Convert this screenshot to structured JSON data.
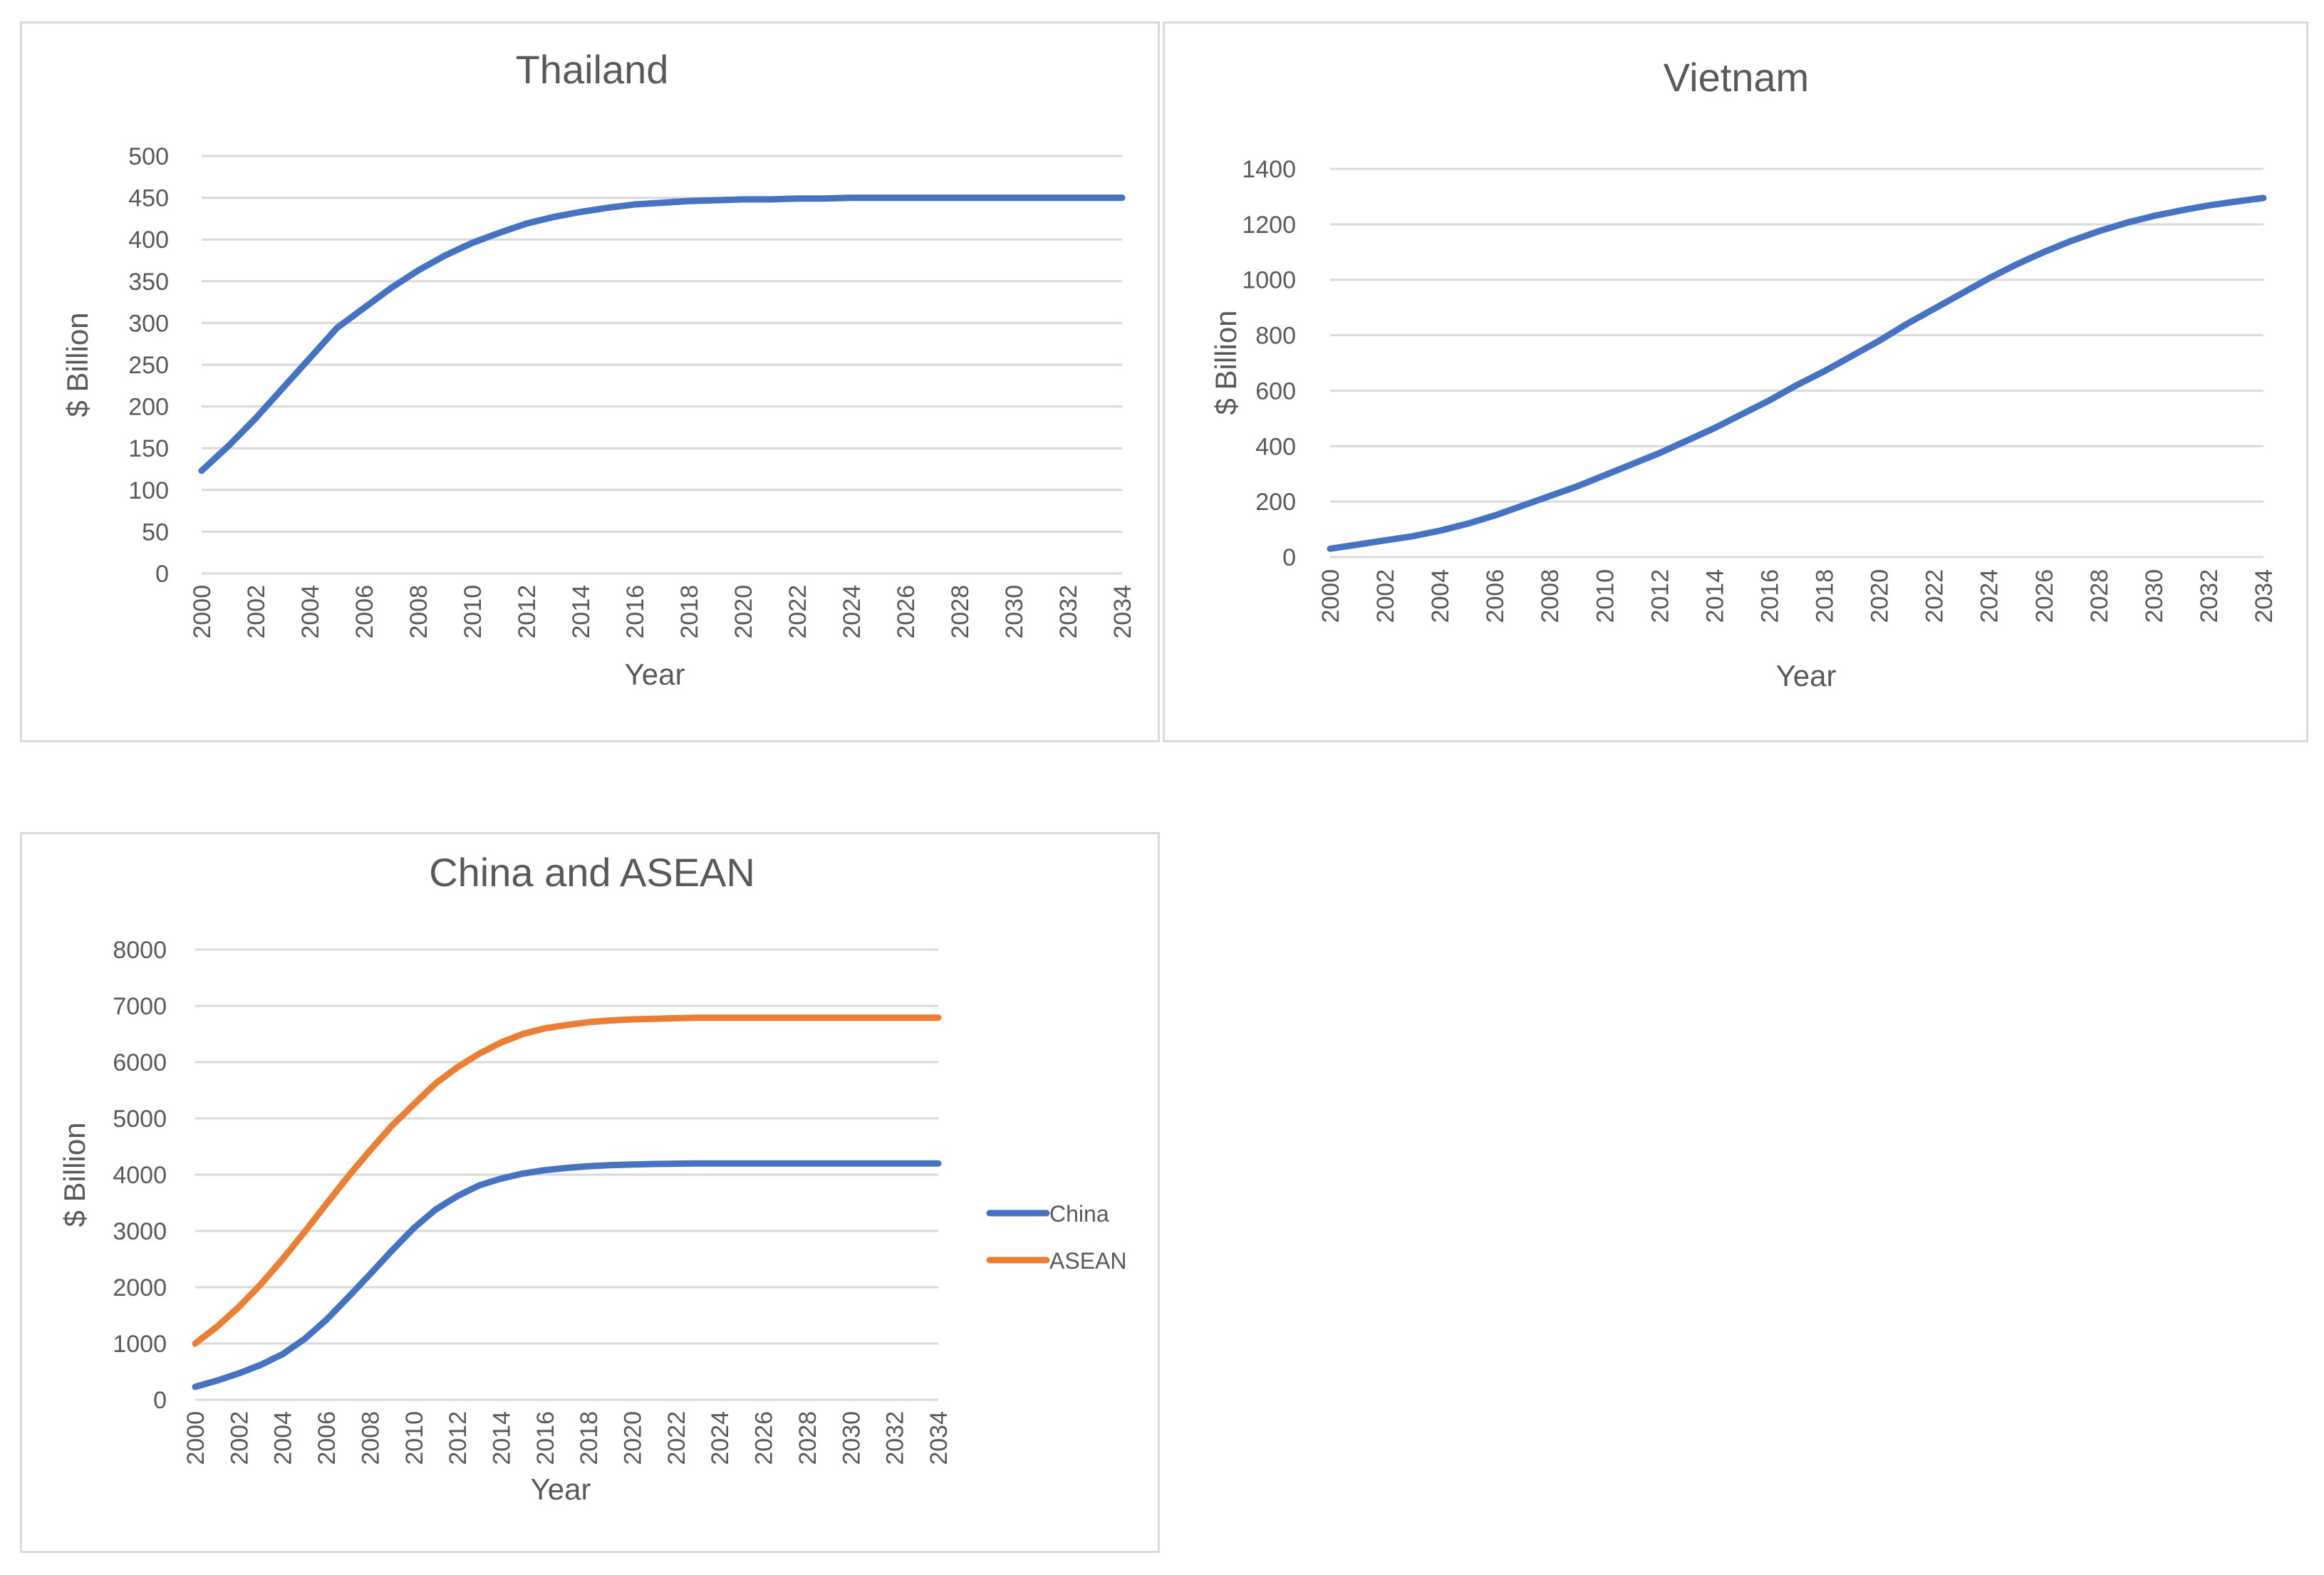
{
  "chart_data": [
    {
      "id": "thailand",
      "type": "line",
      "title": "Thailand",
      "xlabel": "Year",
      "ylabel": "$ Billion",
      "xlim": [
        2000,
        2034
      ],
      "ylim": [
        0,
        500
      ],
      "y_ticks": [
        0,
        50,
        100,
        150,
        200,
        250,
        300,
        350,
        400,
        450,
        500
      ],
      "x_ticks": [
        2000,
        2002,
        2004,
        2006,
        2008,
        2010,
        2012,
        2014,
        2016,
        2018,
        2020,
        2022,
        2024,
        2026,
        2028,
        2030,
        2032,
        2034
      ],
      "grid": true,
      "legend": "none",
      "series": [
        {
          "color": "#4472c4",
          "x": [
            2000,
            2001,
            2002,
            2003,
            2004,
            2005,
            2006,
            2007,
            2008,
            2009,
            2010,
            2011,
            2012,
            2013,
            2014,
            2015,
            2016,
            2017,
            2018,
            2019,
            2020,
            2021,
            2022,
            2023,
            2024,
            2025,
            2026,
            2027,
            2028,
            2029,
            2030,
            2031,
            2032,
            2033,
            2034
          ],
          "values": [
            123,
            153,
            186,
            222,
            258,
            294,
            318,
            342,
            363,
            381,
            396,
            408,
            419,
            427,
            433,
            438,
            442,
            444,
            446,
            447,
            448,
            448,
            449,
            449,
            450,
            450,
            450,
            450,
            450,
            450,
            450,
            450,
            450,
            450,
            450
          ]
        }
      ]
    },
    {
      "id": "vietnam",
      "type": "line",
      "title": "Vietnam",
      "xlabel": "Year",
      "ylabel": "$ Billion",
      "xlim": [
        2000,
        2034
      ],
      "ylim": [
        0,
        1400
      ],
      "y_ticks": [
        0,
        200,
        400,
        600,
        800,
        1000,
        1200,
        1400
      ],
      "x_ticks": [
        2000,
        2002,
        2004,
        2006,
        2008,
        2010,
        2012,
        2014,
        2016,
        2018,
        2020,
        2022,
        2024,
        2026,
        2028,
        2030,
        2032,
        2034
      ],
      "grid": true,
      "legend": "none",
      "series": [
        {
          "color": "#4472c4",
          "x": [
            2000,
            2001,
            2002,
            2003,
            2004,
            2005,
            2006,
            2007,
            2008,
            2009,
            2010,
            2011,
            2012,
            2013,
            2014,
            2015,
            2016,
            2017,
            2018,
            2019,
            2020,
            2021,
            2022,
            2023,
            2024,
            2025,
            2026,
            2027,
            2028,
            2029,
            2030,
            2031,
            2032,
            2033,
            2034
          ],
          "values": [
            30,
            45,
            60,
            75,
            95,
            120,
            150,
            185,
            220,
            255,
            295,
            335,
            375,
            420,
            465,
            515,
            565,
            620,
            670,
            725,
            780,
            840,
            895,
            950,
            1005,
            1055,
            1100,
            1140,
            1175,
            1205,
            1230,
            1250,
            1268,
            1282,
            1295
          ]
        }
      ]
    },
    {
      "id": "china-asean",
      "type": "line",
      "title": "China and ASEAN",
      "xlabel": "Year",
      "ylabel": "$ Billion",
      "xlim": [
        2000,
        2034
      ],
      "ylim": [
        0,
        8000
      ],
      "y_ticks": [
        0,
        1000,
        2000,
        3000,
        4000,
        5000,
        6000,
        7000,
        8000
      ],
      "x_ticks": [
        2000,
        2002,
        2004,
        2006,
        2008,
        2010,
        2012,
        2014,
        2016,
        2018,
        2020,
        2022,
        2024,
        2026,
        2028,
        2030,
        2032,
        2034
      ],
      "grid": true,
      "legend": "right",
      "series": [
        {
          "name": "China",
          "color": "#4472c4",
          "x": [
            2000,
            2001,
            2002,
            2003,
            2004,
            2005,
            2006,
            2007,
            2008,
            2009,
            2010,
            2011,
            2012,
            2013,
            2014,
            2015,
            2016,
            2017,
            2018,
            2019,
            2020,
            2021,
            2022,
            2023,
            2024,
            2025,
            2026,
            2027,
            2028,
            2029,
            2030,
            2031,
            2032,
            2033,
            2034
          ],
          "values": [
            230,
            340,
            470,
            620,
            810,
            1080,
            1420,
            1820,
            2230,
            2650,
            3050,
            3380,
            3620,
            3810,
            3930,
            4020,
            4080,
            4120,
            4150,
            4170,
            4180,
            4190,
            4195,
            4200,
            4200,
            4200,
            4200,
            4200,
            4200,
            4200,
            4200,
            4200,
            4200,
            4200,
            4200
          ]
        },
        {
          "name": "ASEAN",
          "color": "#ed7d31",
          "x": [
            2000,
            2001,
            2002,
            2003,
            2004,
            2005,
            2006,
            2007,
            2008,
            2009,
            2010,
            2011,
            2012,
            2013,
            2014,
            2015,
            2016,
            2017,
            2018,
            2019,
            2020,
            2021,
            2022,
            2023,
            2024,
            2025,
            2026,
            2027,
            2028,
            2029,
            2030,
            2031,
            2032,
            2033,
            2034
          ],
          "values": [
            1000,
            1300,
            1650,
            2050,
            2500,
            2980,
            3480,
            3970,
            4430,
            4870,
            5250,
            5620,
            5910,
            6150,
            6350,
            6500,
            6600,
            6660,
            6710,
            6740,
            6760,
            6770,
            6780,
            6790,
            6790,
            6790,
            6790,
            6790,
            6790,
            6790,
            6790,
            6790,
            6790,
            6790,
            6790
          ]
        }
      ]
    }
  ]
}
